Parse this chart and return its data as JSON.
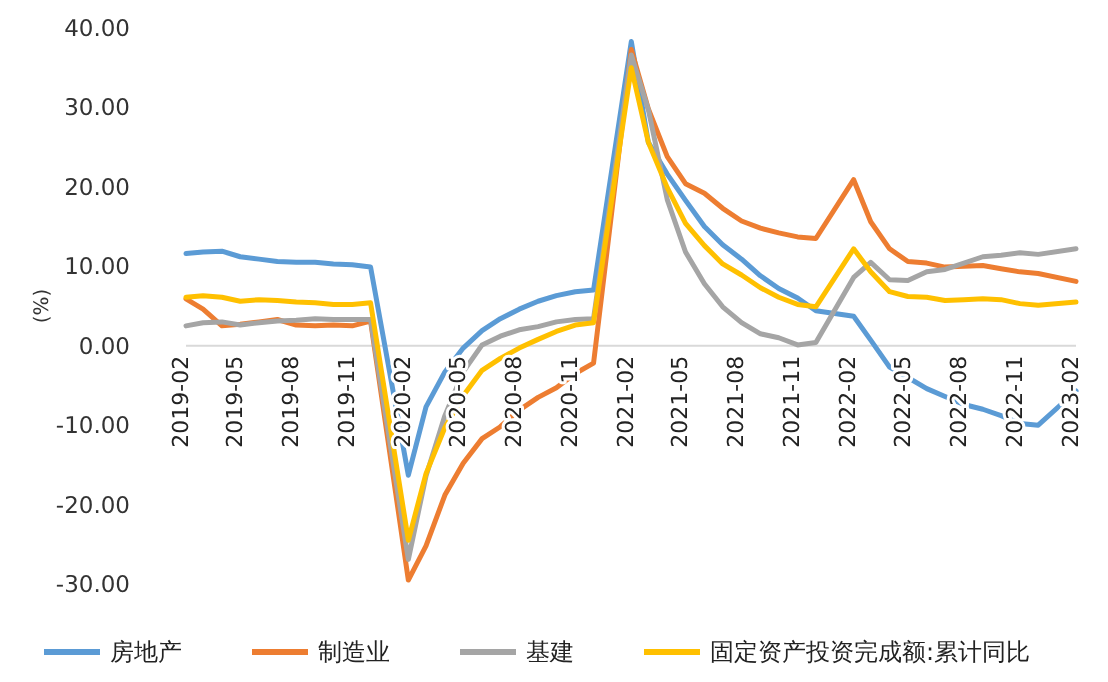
{
  "chart_data": {
    "type": "line",
    "ylabel": "(%)",
    "grid": false,
    "legend": "bottom",
    "marker": "none",
    "line_style": "solid",
    "x": [
      "2019-02",
      "2019-03",
      "2019-04",
      "2019-05",
      "2019-06",
      "2019-07",
      "2019-08",
      "2019-09",
      "2019-10",
      "2019-11",
      "2019-12",
      "2020-02",
      "2020-03",
      "2020-04",
      "2020-05",
      "2020-06",
      "2020-07",
      "2020-08",
      "2020-09",
      "2020-10",
      "2020-11",
      "2020-12",
      "2021-02",
      "2021-03",
      "2021-04",
      "2021-05",
      "2021-06",
      "2021-07",
      "2021-08",
      "2021-09",
      "2021-10",
      "2021-11",
      "2021-12",
      "2022-02",
      "2022-03",
      "2022-04",
      "2022-05",
      "2022-06",
      "2022-07",
      "2022-08",
      "2022-09",
      "2022-10",
      "2022-11",
      "2022-12",
      "2023-02"
    ],
    "xlim": [
      "2019-02",
      "2023-02"
    ],
    "xticks": [
      "2019-02",
      "2019-05",
      "2019-08",
      "2019-11",
      "2020-02",
      "2020-05",
      "2020-08",
      "2020-11",
      "2021-02",
      "2021-05",
      "2021-08",
      "2021-11",
      "2022-02",
      "2022-05",
      "2022-08",
      "2022-11",
      "2023-02"
    ],
    "ylim": [
      -30,
      40
    ],
    "yticks": [
      {
        "value": -30,
        "label": "-30.00"
      },
      {
        "value": -20,
        "label": "-20.00"
      },
      {
        "value": -10,
        "label": "-10.00"
      },
      {
        "value": 0,
        "label": "0.00"
      },
      {
        "value": 10,
        "label": "10.00"
      },
      {
        "value": 20,
        "label": "20.00"
      },
      {
        "value": 30,
        "label": "30.00"
      },
      {
        "value": 40,
        "label": "40.00"
      }
    ],
    "series": [
      {
        "name": "房地产",
        "color": "#5b9bd5",
        "values": [
          11.6,
          11.8,
          11.9,
          11.2,
          10.9,
          10.6,
          10.5,
          10.5,
          10.3,
          10.2,
          9.9,
          -16.3,
          -7.7,
          -3.3,
          -0.3,
          1.9,
          3.4,
          4.6,
          5.6,
          6.3,
          6.8,
          7.0,
          38.3,
          25.6,
          21.6,
          18.3,
          15.0,
          12.7,
          10.9,
          8.8,
          7.2,
          6.0,
          4.4,
          3.7,
          0.7,
          -2.7,
          -4.0,
          -5.4,
          -6.4,
          -7.4,
          -8.0,
          -8.8,
          -9.8,
          -10.0,
          -5.7
        ]
      },
      {
        "name": "制造业",
        "color": "#ed7d31",
        "values": [
          5.9,
          4.6,
          2.5,
          2.7,
          3.0,
          3.3,
          2.6,
          2.5,
          2.6,
          2.5,
          3.1,
          -29.5,
          -25.2,
          -18.8,
          -14.8,
          -11.7,
          -10.2,
          -8.1,
          -6.5,
          -5.3,
          -3.5,
          -2.2,
          37.3,
          29.8,
          23.8,
          20.4,
          19.2,
          17.3,
          15.7,
          14.8,
          14.2,
          13.7,
          13.5,
          20.9,
          15.6,
          12.2,
          10.6,
          10.4,
          9.9,
          10.0,
          10.1,
          9.7,
          9.3,
          9.1,
          8.1
        ]
      },
      {
        "name": "基建",
        "color": "#a5a5a5",
        "values": [
          2.5,
          2.9,
          3.0,
          2.6,
          2.9,
          3.1,
          3.2,
          3.4,
          3.3,
          3.3,
          3.3,
          -26.9,
          -16.4,
          -8.8,
          -3.3,
          0.1,
          1.2,
          2.0,
          2.4,
          3.0,
          3.3,
          3.4,
          36.6,
          29.7,
          18.4,
          11.8,
          7.8,
          4.9,
          2.9,
          1.5,
          1.0,
          0.1,
          0.4,
          8.6,
          10.5,
          8.3,
          8.2,
          9.3,
          9.6,
          10.4,
          11.2,
          11.4,
          11.7,
          11.5,
          12.2
        ]
      },
      {
        "name": "固定资产投资完成额:累计同比",
        "color": "#ffc000",
        "values": [
          6.1,
          6.3,
          6.1,
          5.6,
          5.8,
          5.7,
          5.5,
          5.4,
          5.2,
          5.2,
          5.4,
          -24.5,
          -16.1,
          -10.3,
          -6.3,
          -3.1,
          -1.6,
          -0.3,
          0.8,
          1.8,
          2.6,
          2.9,
          35.0,
          25.6,
          19.9,
          15.4,
          12.6,
          10.3,
          8.9,
          7.3,
          6.1,
          5.2,
          4.9,
          12.2,
          9.3,
          6.8,
          6.2,
          6.1,
          5.7,
          5.8,
          5.9,
          5.8,
          5.3,
          5.1,
          5.5
        ]
      }
    ]
  }
}
